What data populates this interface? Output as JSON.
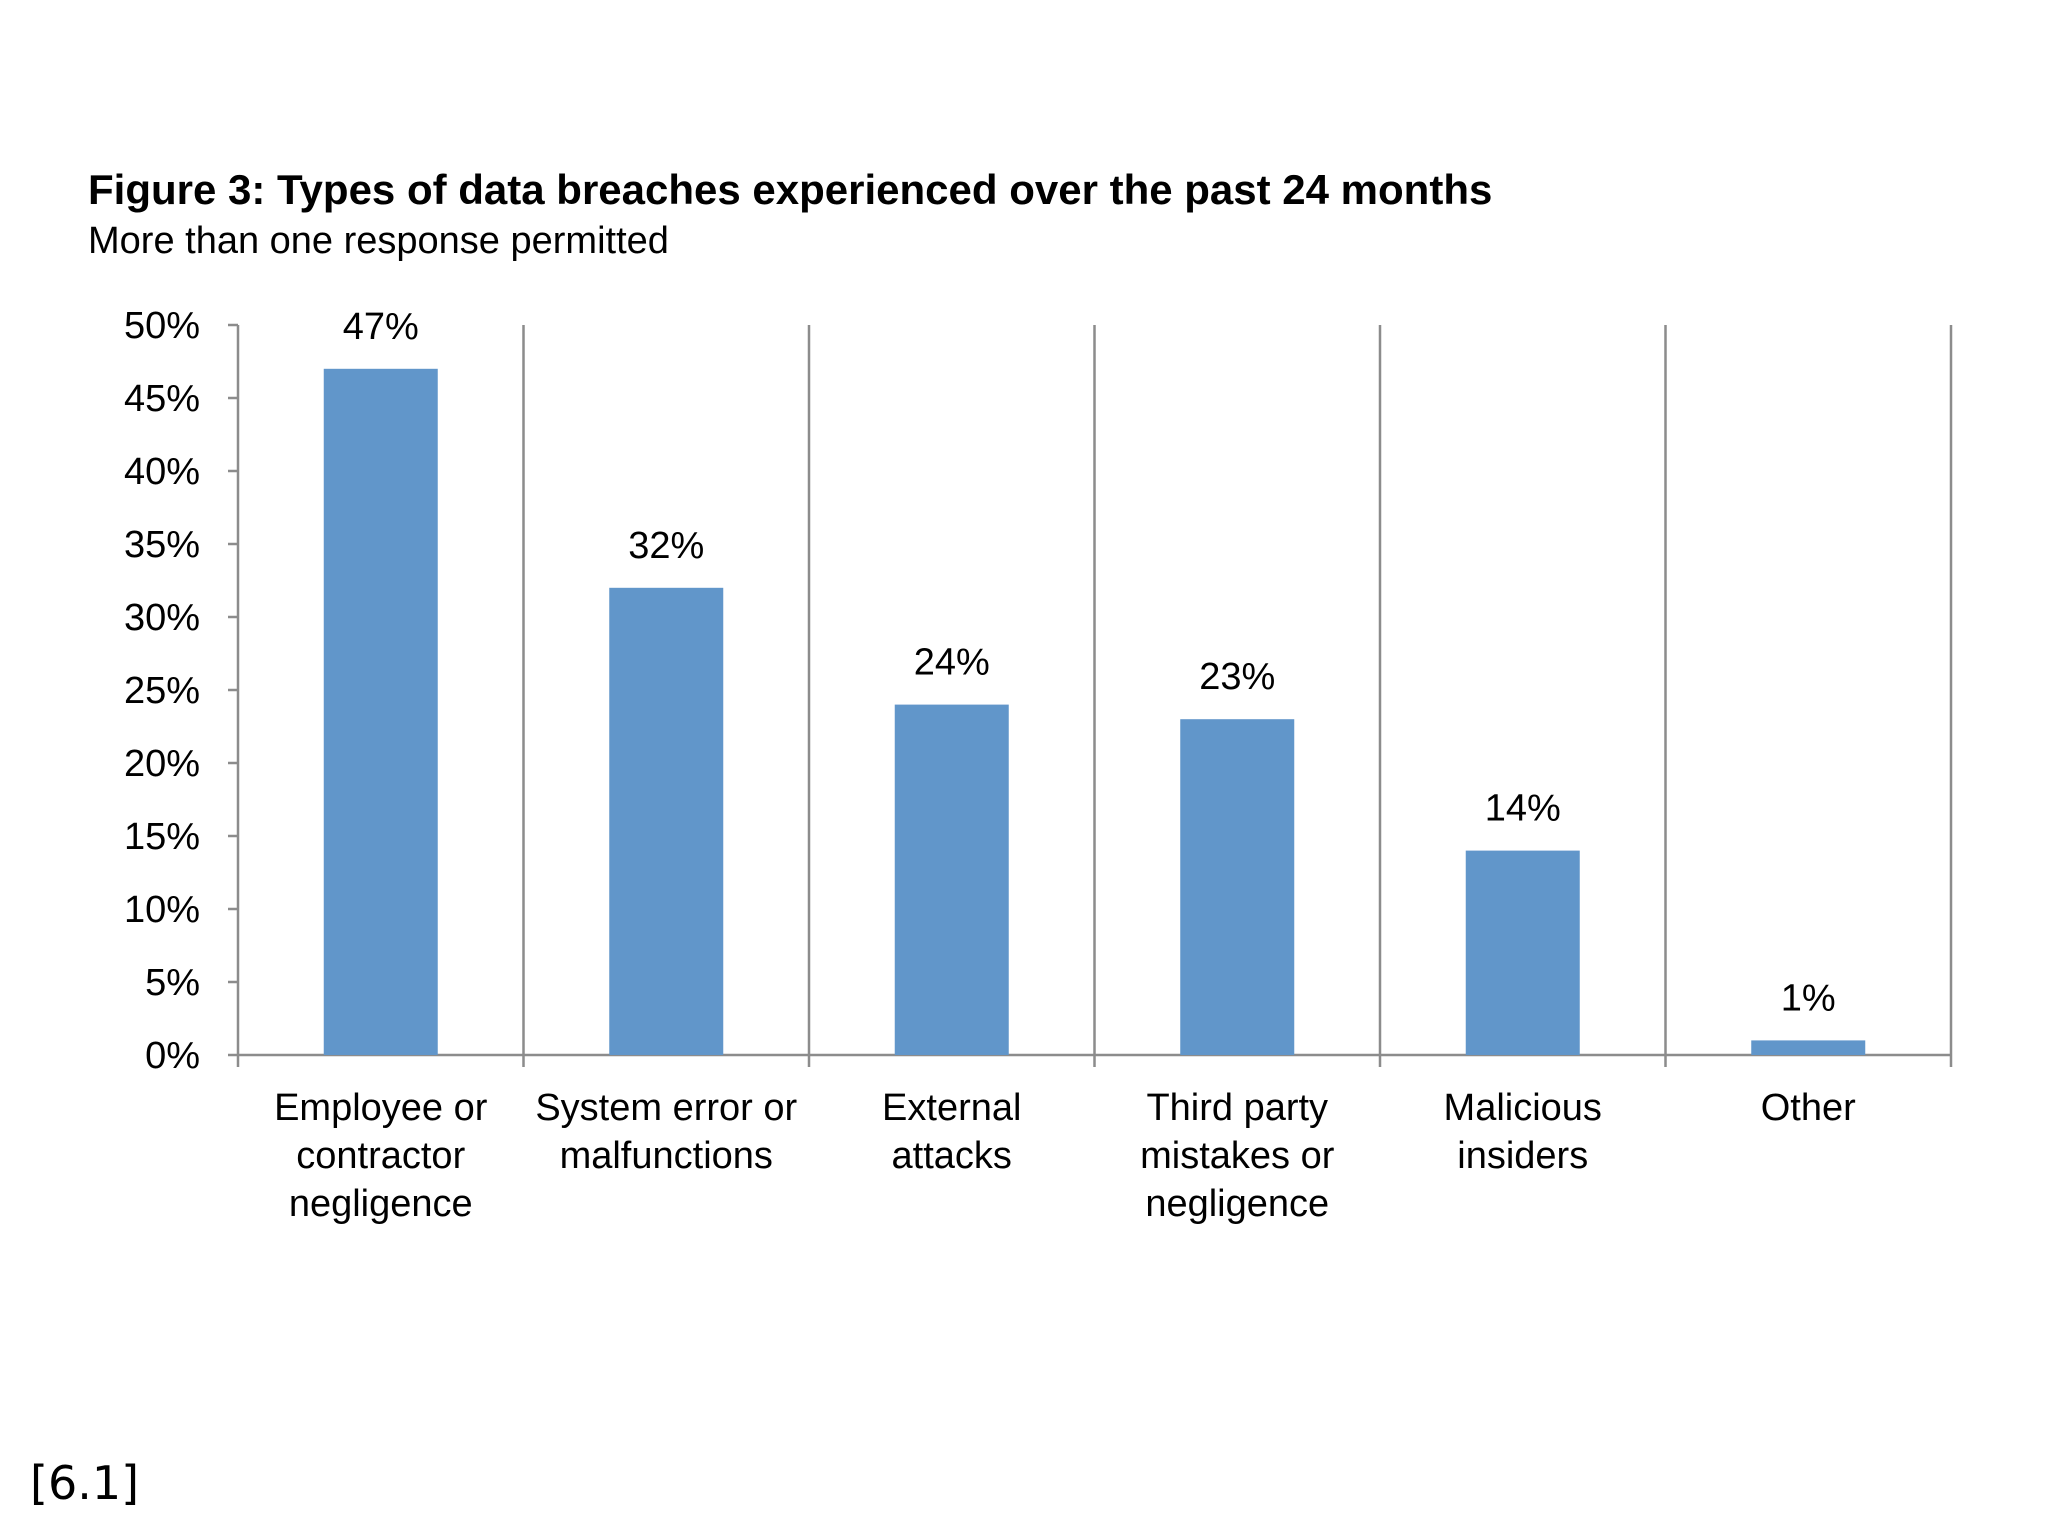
{
  "chart_data": {
    "type": "bar",
    "title": "Figure 3: Types of data breaches experienced over the past 24 months",
    "subtitle": "More than one response permitted",
    "categories": [
      [
        "Employee or",
        "contractor",
        "negligence"
      ],
      [
        "System error or",
        "malfunctions"
      ],
      [
        "External",
        "attacks"
      ],
      [
        "Third party",
        "mistakes or",
        "negligence"
      ],
      [
        "Malicious",
        "insiders"
      ],
      [
        "Other"
      ]
    ],
    "values": [
      47,
      32,
      24,
      23,
      14,
      1
    ],
    "data_labels": [
      "47%",
      "32%",
      "24%",
      "23%",
      "14%",
      "1%"
    ],
    "ylim": [
      0,
      50
    ],
    "yticks": [
      0,
      5,
      10,
      15,
      20,
      25,
      30,
      35,
      40,
      45,
      50
    ],
    "ytick_labels": [
      "0%",
      "5%",
      "10%",
      "15%",
      "20%",
      "25%",
      "30%",
      "35%",
      "40%",
      "45%",
      "50%"
    ],
    "xlabel": "",
    "ylabel": "",
    "bar_color": "#6196CA",
    "grid": false,
    "legend": "none"
  },
  "page_ref": "[6.1]"
}
